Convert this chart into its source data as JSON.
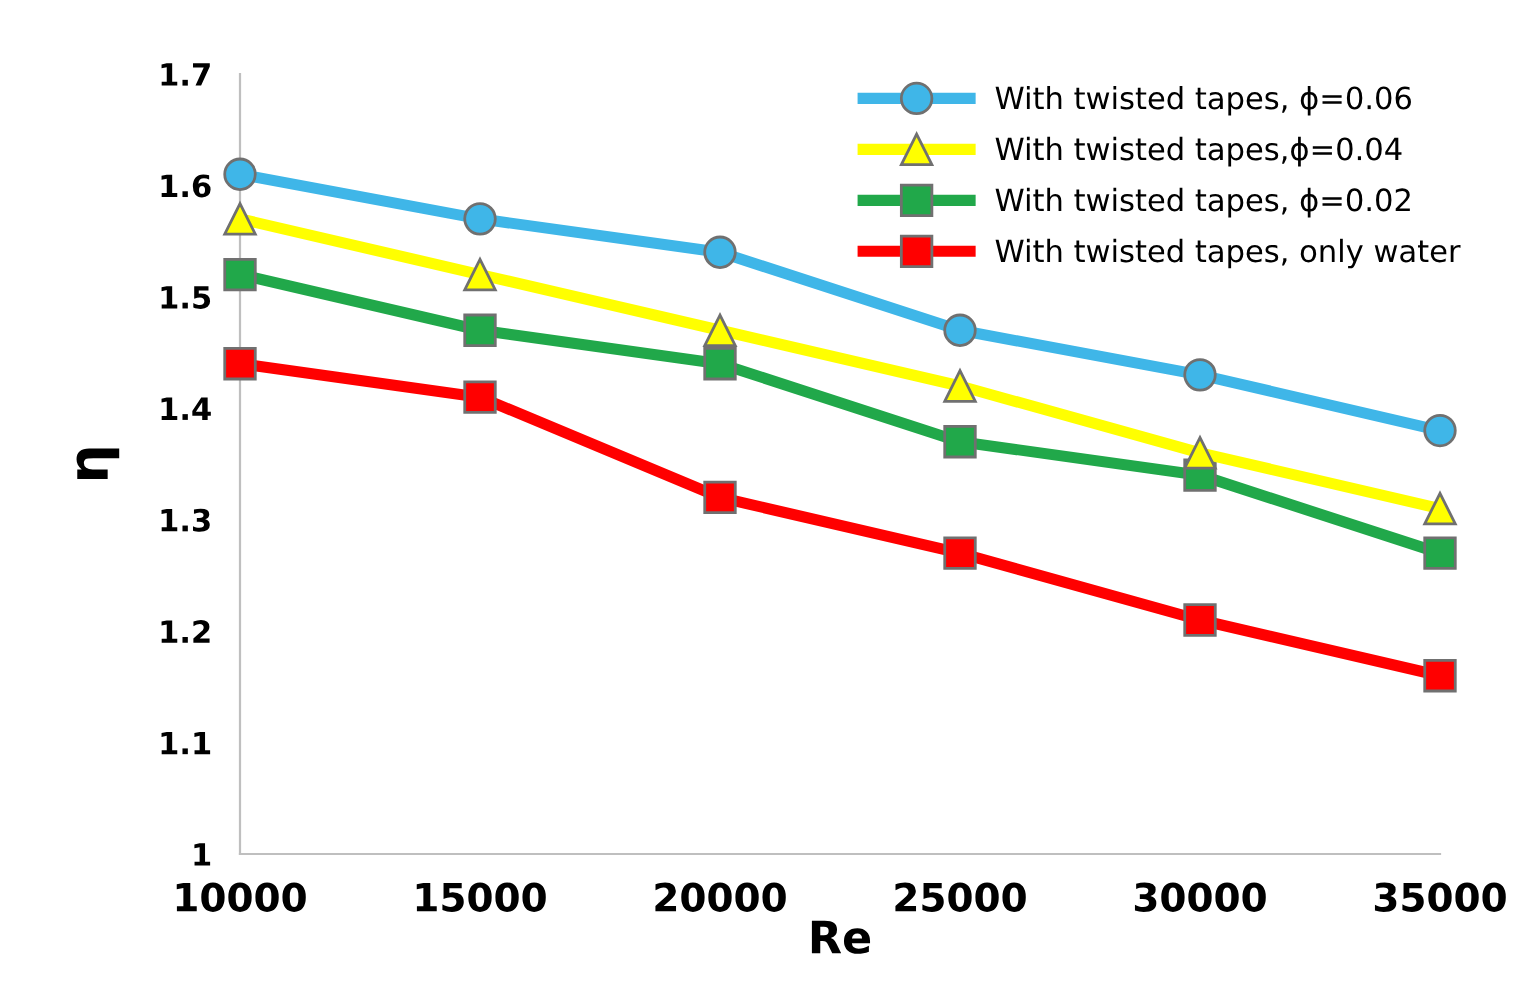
{
  "chart_data": {
    "type": "line",
    "xlabel": "Re",
    "ylabel": "η",
    "x": [
      10000,
      15000,
      20000,
      25000,
      30000,
      35000
    ],
    "xlim": [
      10000,
      35000
    ],
    "xticks": [
      10000,
      15000,
      20000,
      25000,
      30000,
      35000
    ],
    "ylim": [
      1,
      1.7
    ],
    "yticks": [
      1,
      1.1,
      1.2,
      1.3,
      1.4,
      1.5,
      1.6,
      1.7
    ],
    "grid": false,
    "legend": "top right",
    "line_style": "solid",
    "series": [
      {
        "name": "With twisted tapes, ϕ=0.06",
        "color": "#3fb6e8",
        "marker": "circle",
        "values": [
          1.61,
          1.57,
          1.54,
          1.47,
          1.43,
          1.38
        ]
      },
      {
        "name": "With twisted tapes,ϕ=0.04",
        "color": "#ffff00",
        "marker": "triangle",
        "values": [
          1.57,
          1.52,
          1.47,
          1.42,
          1.36,
          1.31
        ]
      },
      {
        "name": "With twisted tapes, ϕ=0.02",
        "color": "#21a84a",
        "marker": "square",
        "values": [
          1.52,
          1.47,
          1.44,
          1.37,
          1.34,
          1.27
        ]
      },
      {
        "name": "With twisted tapes, only water",
        "color": "#ff0000",
        "marker": "square",
        "values": [
          1.44,
          1.41,
          1.32,
          1.27,
          1.21,
          1.16
        ]
      }
    ]
  }
}
